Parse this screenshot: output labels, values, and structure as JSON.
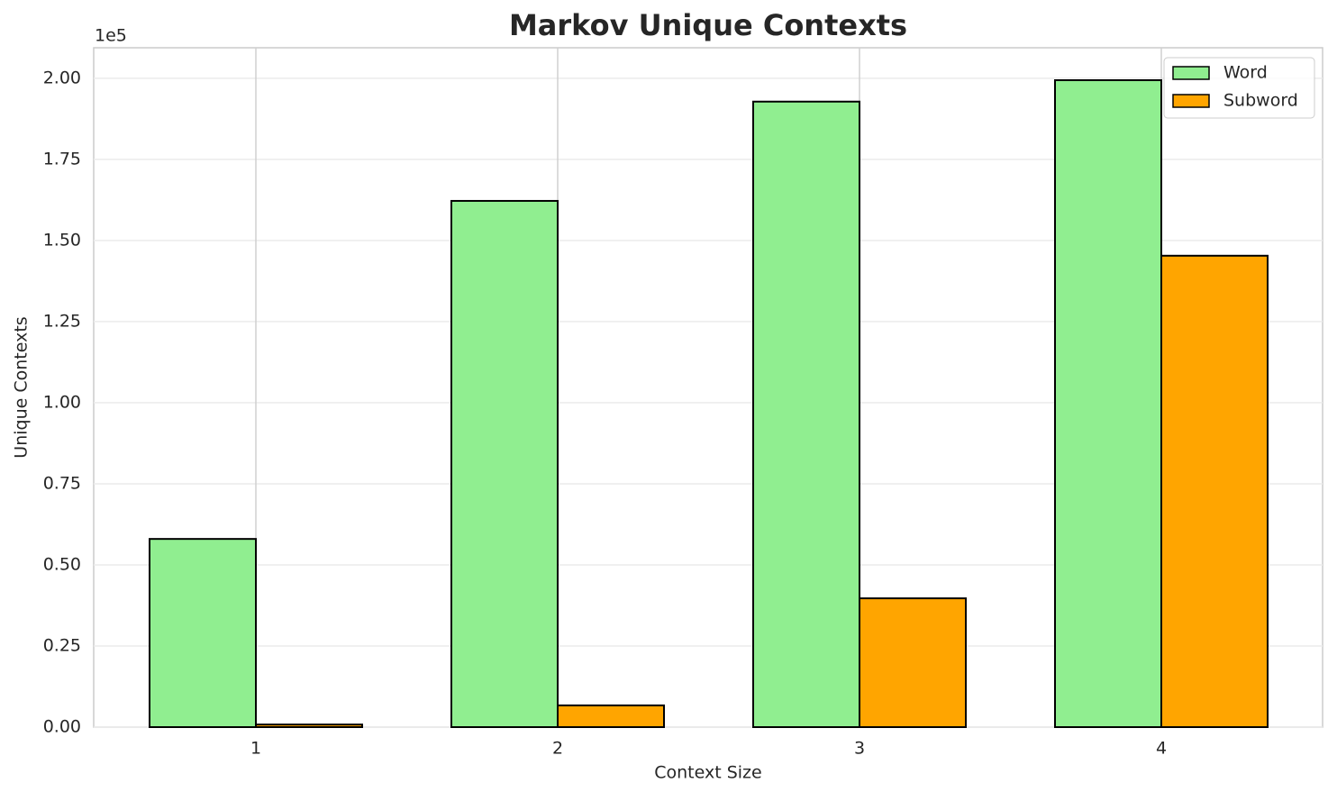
{
  "chart_data": {
    "type": "bar",
    "title": "Markov Unique Contexts",
    "x_label": "Context Size",
    "y_label": "Unique Contexts",
    "y_offset_label": "1e5",
    "categories": [
      "1",
      "2",
      "3",
      "4"
    ],
    "series": [
      {
        "name": "Word",
        "color": "#90ee90",
        "values": [
          58000,
          162200,
          192800,
          199400
        ]
      },
      {
        "name": "Subword",
        "color": "#ffa500",
        "values": [
          800,
          6700,
          39700,
          145300
        ]
      }
    ],
    "ylim": [
      0,
      209400
    ],
    "yticks": [
      {
        "value": 0,
        "label": "0.00"
      },
      {
        "value": 25000,
        "label": "0.25"
      },
      {
        "value": 50000,
        "label": "0.50"
      },
      {
        "value": 75000,
        "label": "0.75"
      },
      {
        "value": 100000,
        "label": "1.00"
      },
      {
        "value": 125000,
        "label": "1.25"
      },
      {
        "value": 150000,
        "label": "1.50"
      },
      {
        "value": 175000,
        "label": "1.75"
      },
      {
        "value": 200000,
        "label": "2.00"
      }
    ],
    "grid": true,
    "legend": "upper right"
  }
}
